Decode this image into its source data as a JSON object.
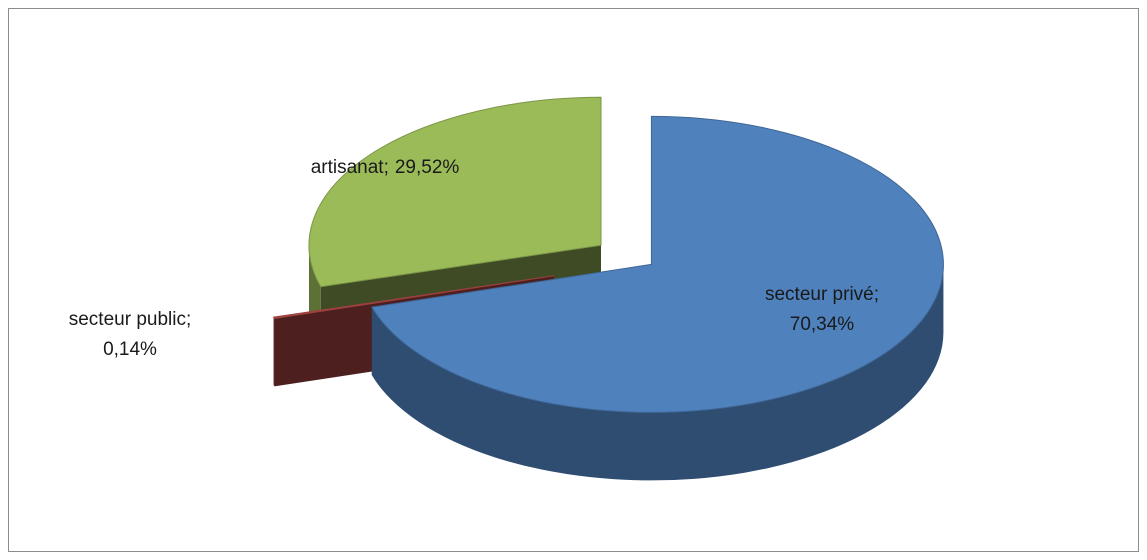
{
  "chart_data": {
    "type": "pie3d",
    "categories": [
      "secteur privé",
      "secteur public",
      "artisanat"
    ],
    "values": [
      70.34,
      0.14,
      29.52
    ],
    "value_labels": [
      "70,34%",
      "0,14%",
      "29,52%"
    ],
    "separator": ";",
    "colors": [
      "#4f81bd",
      "#c0504d",
      "#9bbb59"
    ]
  }
}
